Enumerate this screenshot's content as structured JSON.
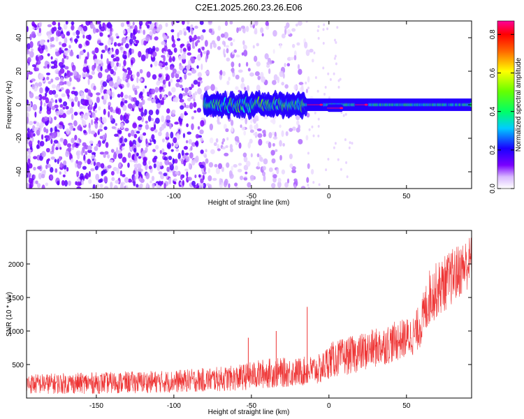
{
  "chart_data": [
    {
      "type": "heatmap",
      "title": "C2E1.2025.260.23.26.E06",
      "xlabel": "Height of straight line (km)",
      "ylabel": "Frequency (Hz)",
      "xlim": [
        -195,
        92
      ],
      "ylim": [
        -50,
        50
      ],
      "xticks": [
        -150,
        -100,
        -50,
        0,
        50
      ],
      "yticks": [
        -40,
        -20,
        0,
        20,
        40
      ],
      "colorbar": {
        "label": "Normalized spectral amplitude",
        "range": [
          0,
          0.87
        ],
        "ticks": [
          0.0,
          0.2,
          0.4,
          0.6,
          0.8
        ],
        "colormap": [
          "#ffffff",
          "#7a00ff",
          "#0000ff",
          "#00ffff",
          "#00ff00",
          "#ffff00",
          "#ff0000",
          "#ff00aa"
        ]
      },
      "signal_band": [
        {
          "x_start": -80,
          "x_end": -15,
          "freq_center": 0,
          "freq_halfwidth": 5,
          "amplitude": 0.4
        },
        {
          "x_start": -15,
          "x_end": 92,
          "freq_center": 0,
          "freq_halfwidth": 2.5,
          "amplitude": 0.35
        },
        {
          "x_start": -13,
          "x_end": -5,
          "freq_center": 0,
          "freq_halfwidth": 1,
          "amplitude": 0.85
        },
        {
          "x_start": 0,
          "x_end": 8,
          "freq_center": -2,
          "freq_halfwidth": 1,
          "amplitude": 0.85
        },
        {
          "x_start": 18,
          "x_end": 24,
          "freq_center": 0,
          "freq_halfwidth": 1,
          "amplitude": 0.85
        }
      ],
      "noise_region": {
        "x_start": -195,
        "x_end": -15,
        "typical_amplitude": 0.1
      }
    },
    {
      "type": "line",
      "title": "",
      "xlabel": "Height of straight line (km)",
      "ylabel": "SNR (10 * v/v)",
      "xlim": [
        -195,
        92
      ],
      "ylim": [
        0,
        2500
      ],
      "xticks": [
        -150,
        -100,
        -50,
        0,
        50
      ],
      "yticks": [
        500,
        1000,
        1500,
        2000
      ],
      "color": "#ee3333",
      "trend": {
        "x": [
          -195,
          -150,
          -100,
          -60,
          -40,
          -20,
          -5,
          0,
          20,
          40,
          55,
          60,
          65,
          80,
          92
        ],
        "base": [
          150,
          160,
          180,
          220,
          280,
          300,
          340,
          450,
          560,
          700,
          820,
          1000,
          1350,
          1650,
          1900
        ],
        "spread": [
          250,
          270,
          280,
          320,
          380,
          360,
          380,
          450,
          480,
          500,
          500,
          600,
          700,
          700,
          650
        ]
      },
      "spikes": [
        {
          "x": -14,
          "value": 1360
        },
        {
          "x": -52,
          "value": 900
        },
        {
          "x": -34,
          "value": 1000
        }
      ]
    }
  ]
}
